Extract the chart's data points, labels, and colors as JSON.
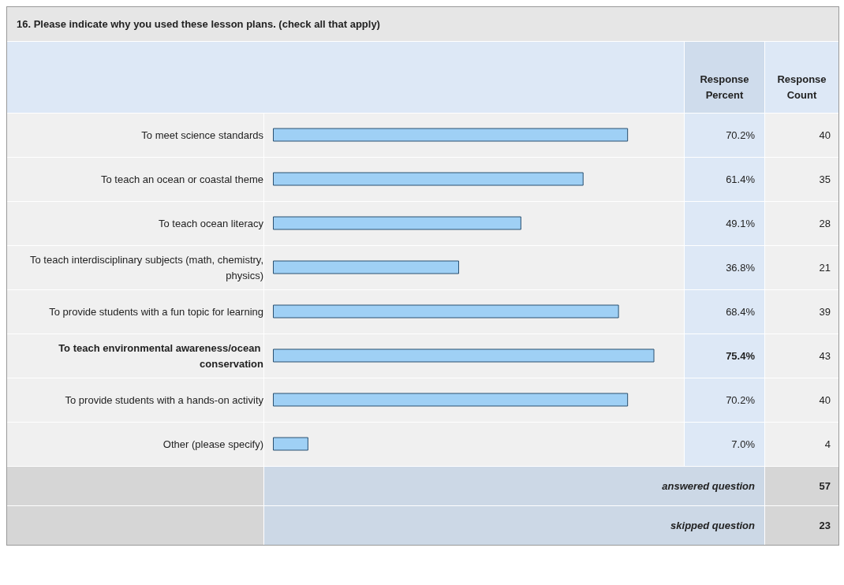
{
  "chart_data": {
    "type": "bar",
    "orientation": "horizontal",
    "title": "16. Please indicate why you used these lesson plans. (check all that apply)",
    "categories": [
      "To meet science standards",
      "To teach an ocean or coastal theme",
      "To teach ocean literacy",
      "To teach interdisciplinary subjects (math, chemistry, physics)",
      "To provide students with a fun topic for learning",
      "To teach environmental awareness/ocean conservation",
      "To provide students with a hands-on activity",
      "Other (please specify)"
    ],
    "tick_labels": "y",
    "grid": false,
    "legend": false,
    "series": [
      {
        "name": "Response Percent",
        "color": "#9fd0f5",
        "values": [
          70.2,
          61.4,
          49.1,
          36.8,
          68.4,
          75.4,
          70.2,
          7.0
        ],
        "value_labels": [
          "70.2%",
          "61.4%",
          "49.1%",
          "36.8%",
          "68.4%",
          "75.4%",
          "70.2%",
          "7.0%"
        ]
      }
    ],
    "annotations": [
      "Response Count",
      "40",
      "35",
      "28",
      "21",
      "39",
      "43",
      "40",
      "4",
      "answered question",
      "57",
      "skipped question",
      "23"
    ]
  }
}
